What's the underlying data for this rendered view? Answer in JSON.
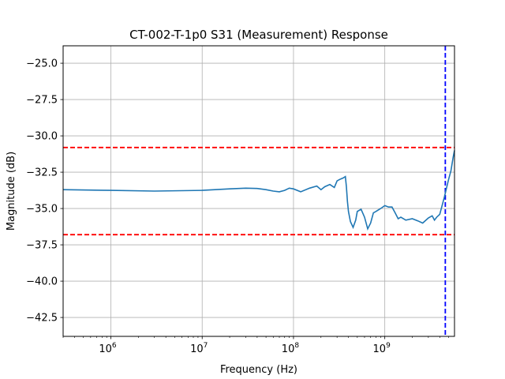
{
  "chart_data": {
    "type": "line",
    "title": "CT-002-T-1p0 S31 (Measurement) Response",
    "xlabel": "Frequency (Hz)",
    "ylabel": "Magnitude (dB)",
    "x_scale": "log",
    "xlim": [
      300000,
      5800000000
    ],
    "ylim": [
      -43.8,
      -23.8
    ],
    "grid": true,
    "x_ticks": [
      {
        "value": 1000000,
        "base": "10",
        "exp": "6"
      },
      {
        "value": 10000000,
        "base": "10",
        "exp": "7"
      },
      {
        "value": 100000000,
        "base": "10",
        "exp": "8"
      },
      {
        "value": 1000000000,
        "base": "10",
        "exp": "9"
      }
    ],
    "y_ticks": [
      {
        "value": -25.0,
        "label": "−25.0"
      },
      {
        "value": -27.5,
        "label": "−27.5"
      },
      {
        "value": -30.0,
        "label": "−30.0"
      },
      {
        "value": -32.5,
        "label": "−32.5"
      },
      {
        "value": -35.0,
        "label": "−35.0"
      },
      {
        "value": -37.5,
        "label": "−37.5"
      },
      {
        "value": -40.0,
        "label": "−40.0"
      },
      {
        "value": -42.5,
        "label": "−42.5"
      }
    ],
    "series": [
      {
        "color": "#1f77b4",
        "x": [
          300000,
          1000000,
          3000000,
          10000000,
          20000000,
          30000000,
          40000000,
          50000000,
          60000000,
          70000000,
          80000000,
          90000000,
          100000000,
          120000000,
          150000000,
          180000000,
          200000000,
          220000000,
          250000000,
          280000000,
          300000000,
          320000000,
          350000000,
          370000000,
          380000000,
          390000000,
          400000000,
          420000000,
          450000000,
          480000000,
          500000000,
          550000000,
          600000000,
          650000000,
          700000000,
          750000000,
          800000000,
          900000000,
          1000000000,
          1100000000,
          1200000000,
          1300000000,
          1400000000,
          1500000000,
          1700000000,
          2000000000,
          2300000000,
          2600000000,
          3000000000,
          3300000000,
          3500000000,
          3700000000,
          4000000000,
          4200000000,
          4500000000,
          4700000000,
          5000000000,
          5300000000,
          5600000000,
          5800000000
        ],
        "values": [
          -33.7,
          -33.75,
          -33.8,
          -33.75,
          -33.65,
          -33.6,
          -33.62,
          -33.7,
          -33.8,
          -33.85,
          -33.75,
          -33.6,
          -33.65,
          -33.85,
          -33.6,
          -33.45,
          -33.7,
          -33.5,
          -33.35,
          -33.55,
          -33.1,
          -33.0,
          -32.9,
          -32.8,
          -33.5,
          -34.5,
          -35.2,
          -35.9,
          -36.3,
          -35.8,
          -35.2,
          -35.05,
          -35.6,
          -36.4,
          -36.0,
          -35.3,
          -35.2,
          -35.0,
          -34.8,
          -34.9,
          -34.9,
          -35.3,
          -35.7,
          -35.6,
          -35.8,
          -35.7,
          -35.85,
          -36.0,
          -35.65,
          -35.5,
          -35.8,
          -35.6,
          -35.4,
          -34.9,
          -34.2,
          -33.7,
          -33.0,
          -32.4,
          -31.5,
          -31.0
        ]
      }
    ],
    "hlines": [
      {
        "value": -30.8,
        "color": "#ff0000",
        "style": "dashed"
      },
      {
        "value": -36.8,
        "color": "#ff0000",
        "style": "dashed"
      }
    ],
    "vlines": [
      {
        "value": 4600000000,
        "color": "#0000ff",
        "style": "dashed"
      }
    ]
  }
}
